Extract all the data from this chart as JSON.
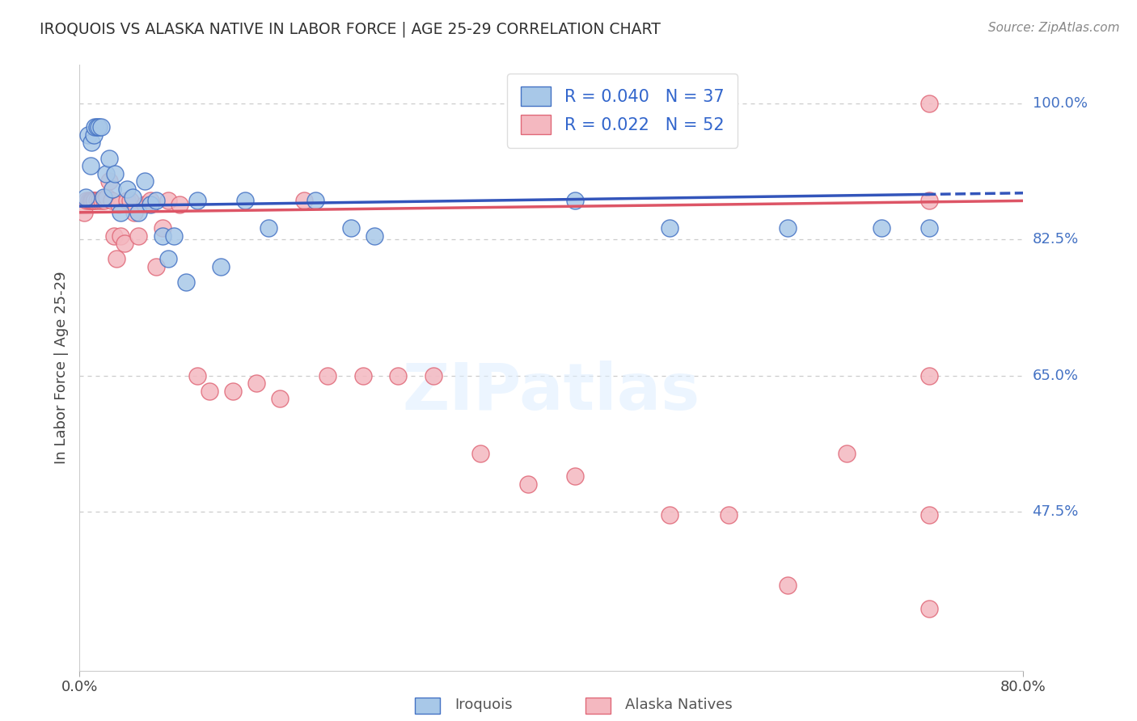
{
  "title": "IROQUOIS VS ALASKA NATIVE IN LABOR FORCE | AGE 25-29 CORRELATION CHART",
  "source": "Source: ZipAtlas.com",
  "ylabel": "In Labor Force | Age 25-29",
  "y_tick_labels": [
    "100.0%",
    "82.5%",
    "65.0%",
    "47.5%"
  ],
  "y_tick_values": [
    1.0,
    0.825,
    0.65,
    0.475
  ],
  "x_lim": [
    0.0,
    0.8
  ],
  "y_lim": [
    0.27,
    1.05
  ],
  "legend_entry_blue": "R = 0.040   N = 37",
  "legend_entry_pink": "R = 0.022   N = 52",
  "legend_label_iroquois": "Iroquois",
  "legend_label_alaska": "Alaska Natives",
  "blue_fill": "#a8c8e8",
  "blue_edge": "#4472c4",
  "pink_fill": "#f4b8c0",
  "pink_edge": "#e06878",
  "trend_blue": "#3355bb",
  "trend_pink": "#dd5566",
  "trend_blue_solid_end": 0.72,
  "watermark": "ZIPatlas",
  "iroquois_x": [
    0.005,
    0.007,
    0.009,
    0.01,
    0.012,
    0.013,
    0.015,
    0.016,
    0.018,
    0.02,
    0.022,
    0.025,
    0.028,
    0.03,
    0.035,
    0.04,
    0.045,
    0.05,
    0.055,
    0.06,
    0.065,
    0.07,
    0.075,
    0.08,
    0.09,
    0.1,
    0.12,
    0.14,
    0.16,
    0.2,
    0.23,
    0.25,
    0.42,
    0.5,
    0.6,
    0.68,
    0.72
  ],
  "iroquois_y": [
    0.88,
    0.96,
    0.92,
    0.95,
    0.96,
    0.97,
    0.97,
    0.97,
    0.97,
    0.88,
    0.91,
    0.93,
    0.89,
    0.91,
    0.86,
    0.89,
    0.88,
    0.86,
    0.9,
    0.87,
    0.875,
    0.83,
    0.8,
    0.83,
    0.77,
    0.875,
    0.79,
    0.875,
    0.84,
    0.875,
    0.84,
    0.83,
    0.875,
    0.84,
    0.84,
    0.84,
    0.84
  ],
  "alaska_x": [
    0.004,
    0.006,
    0.008,
    0.009,
    0.01,
    0.011,
    0.012,
    0.013,
    0.015,
    0.017,
    0.019,
    0.021,
    0.023,
    0.025,
    0.027,
    0.029,
    0.031,
    0.033,
    0.035,
    0.038,
    0.04,
    0.043,
    0.046,
    0.05,
    0.055,
    0.06,
    0.065,
    0.07,
    0.075,
    0.085,
    0.1,
    0.11,
    0.13,
    0.15,
    0.17,
    0.19,
    0.21,
    0.24,
    0.27,
    0.3,
    0.34,
    0.38,
    0.42,
    0.5,
    0.55,
    0.6,
    0.65,
    0.72,
    0.72,
    0.72,
    0.72,
    0.72
  ],
  "alaska_y": [
    0.86,
    0.875,
    0.875,
    0.875,
    0.875,
    0.875,
    0.875,
    0.875,
    0.875,
    0.875,
    0.875,
    0.875,
    0.88,
    0.9,
    0.875,
    0.83,
    0.8,
    0.87,
    0.83,
    0.82,
    0.875,
    0.875,
    0.86,
    0.83,
    0.87,
    0.875,
    0.79,
    0.84,
    0.875,
    0.87,
    0.65,
    0.63,
    0.63,
    0.64,
    0.62,
    0.875,
    0.65,
    0.65,
    0.65,
    0.65,
    0.55,
    0.51,
    0.52,
    0.47,
    0.47,
    0.38,
    0.55,
    1.0,
    0.875,
    0.65,
    0.47,
    0.35
  ]
}
